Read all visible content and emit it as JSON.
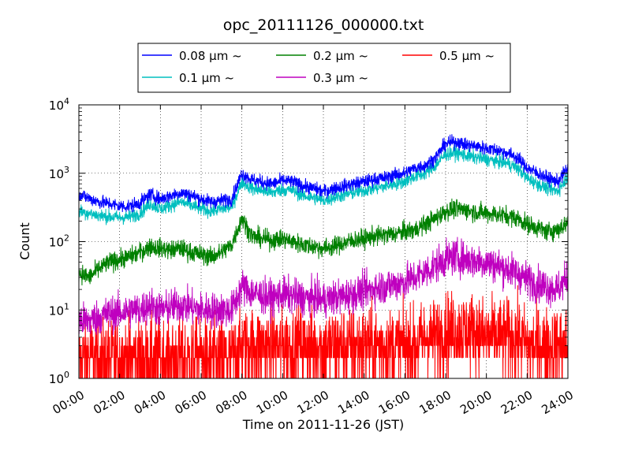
{
  "chart_data": {
    "type": "line",
    "title": "opc_20111126_000000.txt",
    "xlabel": "Time on 2011-11-26 (JST)",
    "ylabel": "Count",
    "yscale": "log",
    "ylim": [
      1,
      10000
    ],
    "xlim": [
      "00:00",
      "24:00"
    ],
    "grid": true,
    "legend_position": "top",
    "x_ticks": [
      "00:00",
      "02:00",
      "04:00",
      "06:00",
      "08:00",
      "10:00",
      "12:00",
      "14:00",
      "16:00",
      "18:00",
      "20:00",
      "22:00",
      "24:00"
    ],
    "y_ticks": [
      {
        "base": "10",
        "exp": "0",
        "value": 1
      },
      {
        "base": "10",
        "exp": "1",
        "value": 10
      },
      {
        "base": "10",
        "exp": "2",
        "value": 100
      },
      {
        "base": "10",
        "exp": "3",
        "value": 1000
      },
      {
        "base": "10",
        "exp": "4",
        "value": 10000
      }
    ],
    "x_hours": [
      0,
      0.5,
      1,
      1.5,
      2,
      2.5,
      3,
      3.5,
      4,
      4.5,
      5,
      5.5,
      6,
      6.5,
      7,
      7.5,
      8,
      8.5,
      9,
      9.5,
      10,
      10.5,
      11,
      11.5,
      12,
      12.5,
      13,
      13.5,
      14,
      14.5,
      15,
      15.5,
      16,
      16.5,
      17,
      17.5,
      18,
      18.5,
      19,
      19.5,
      20,
      20.5,
      21,
      21.5,
      22,
      22.5,
      23,
      23.5,
      24
    ],
    "series": [
      {
        "name": "0.08 μm ~",
        "color": "#0000ff",
        "noise": 0.05,
        "values": [
          500,
          430,
          380,
          360,
          330,
          330,
          370,
          490,
          420,
          470,
          520,
          480,
          420,
          380,
          400,
          420,
          1000,
          800,
          740,
          700,
          780,
          750,
          650,
          600,
          540,
          600,
          650,
          700,
          750,
          820,
          850,
          950,
          1000,
          1200,
          1300,
          1700,
          2700,
          2900,
          2600,
          2500,
          2300,
          2200,
          2000,
          1700,
          1200,
          1000,
          850,
          750,
          1200
        ]
      },
      {
        "name": "0.1 μm ~",
        "color": "#00bfbf",
        "noise": 0.05,
        "values": [
          280,
          260,
          240,
          230,
          225,
          230,
          260,
          360,
          300,
          340,
          380,
          340,
          300,
          280,
          300,
          320,
          750,
          600,
          560,
          520,
          580,
          560,
          470,
          440,
          400,
          440,
          480,
          520,
          560,
          600,
          640,
          700,
          760,
          900,
          1000,
          1300,
          1900,
          2000,
          1800,
          1700,
          1600,
          1500,
          1400,
          1200,
          850,
          700,
          600,
          550,
          900
        ]
      },
      {
        "name": "0.2 μm ~",
        "color": "#008000",
        "noise": 0.07,
        "values": [
          35,
          30,
          40,
          50,
          55,
          60,
          70,
          85,
          80,
          75,
          80,
          70,
          65,
          60,
          70,
          90,
          220,
          120,
          110,
          105,
          110,
          100,
          90,
          85,
          80,
          85,
          95,
          105,
          110,
          120,
          125,
          130,
          140,
          150,
          180,
          220,
          280,
          300,
          290,
          270,
          260,
          250,
          240,
          220,
          180,
          160,
          140,
          150,
          190
        ]
      },
      {
        "name": "0.3 μm ~",
        "color": "#bf00bf",
        "noise": 0.13,
        "values": [
          7,
          7,
          8,
          9,
          9,
          10,
          10,
          12,
          10,
          11,
          12,
          11,
          10,
          10,
          10,
          10,
          22,
          18,
          16,
          15,
          17,
          16,
          15,
          15,
          14,
          15,
          16,
          17,
          19,
          21,
          22,
          24,
          26,
          30,
          36,
          45,
          55,
          60,
          55,
          52,
          50,
          45,
          40,
          35,
          28,
          24,
          22,
          20,
          30
        ]
      },
      {
        "name": "0.5 μm ~",
        "color": "#ff0000",
        "noise": 0.28,
        "values": [
          2,
          2,
          2,
          2,
          2,
          2,
          2,
          2,
          2,
          2,
          2,
          2,
          2,
          2,
          2,
          2,
          3,
          3,
          3,
          3,
          3,
          3,
          3,
          3,
          3,
          3,
          3,
          3,
          3,
          3,
          3,
          3,
          3,
          3,
          4,
          4,
          5,
          5,
          5,
          5,
          4,
          4,
          4,
          4,
          3,
          3,
          3,
          3,
          3
        ]
      }
    ]
  }
}
